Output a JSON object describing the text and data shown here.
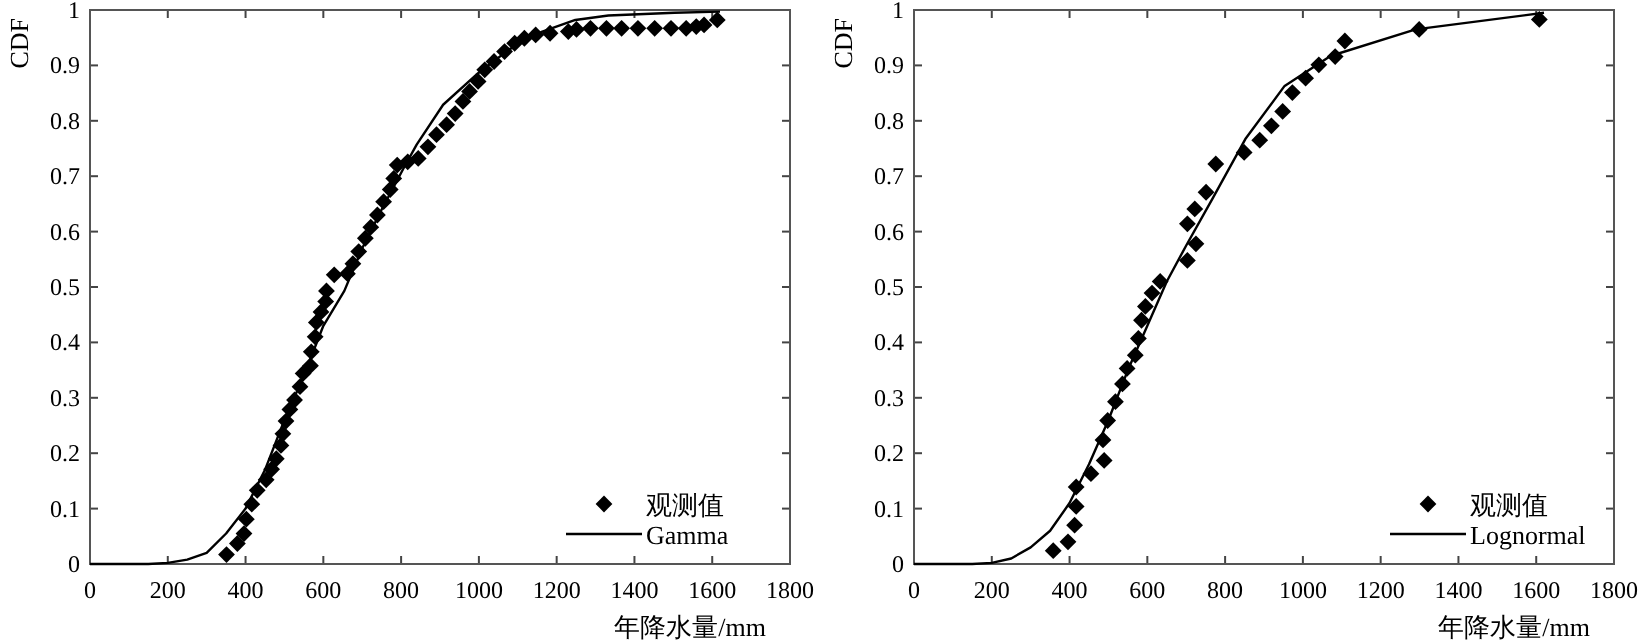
{
  "chart_data": [
    {
      "type": "scatter",
      "xlabel": "年降水量/mm",
      "ylabel": "CDF",
      "xlim": [
        0,
        1800
      ],
      "ylim": [
        0,
        1
      ],
      "xticks": [
        0,
        200,
        400,
        600,
        800,
        1000,
        1200,
        1400,
        1600,
        1800
      ],
      "yticks": [
        0,
        0.1,
        0.2,
        0.3,
        0.4,
        0.5,
        0.6,
        0.7,
        0.8,
        0.9,
        1
      ],
      "legend": "bottom right",
      "series": [
        {
          "name": "观测值",
          "marker": "diamond",
          "color": "#000000",
          "x": [
            351,
            379,
            396,
            402,
            416,
            430,
            453,
            467,
            479,
            491,
            496,
            504,
            514,
            526,
            540,
            548,
            567,
            569,
            579,
            582,
            594,
            606,
            608,
            628,
            662,
            676,
            691,
            708,
            722,
            739,
            755,
            772,
            781,
            790,
            817,
            844,
            869,
            891,
            917,
            939,
            959,
            976,
            998,
            1015,
            1039,
            1066,
            1092,
            1117,
            1146,
            1183,
            1230,
            1251,
            1287,
            1328,
            1367,
            1409,
            1452,
            1494,
            1533,
            1559,
            1579,
            1613
          ],
          "values": [
            0.017,
            0.037,
            0.055,
            0.081,
            0.108,
            0.133,
            0.152,
            0.171,
            0.19,
            0.214,
            0.235,
            0.258,
            0.279,
            0.296,
            0.32,
            0.344,
            0.358,
            0.383,
            0.41,
            0.436,
            0.455,
            0.474,
            0.493,
            0.522,
            0.524,
            0.542,
            0.564,
            0.588,
            0.608,
            0.63,
            0.654,
            0.676,
            0.696,
            0.72,
            0.726,
            0.732,
            0.753,
            0.775,
            0.793,
            0.813,
            0.835,
            0.853,
            0.871,
            0.892,
            0.907,
            0.925,
            0.94,
            0.949,
            0.955,
            0.958,
            0.961,
            0.965,
            0.967,
            0.967,
            0.967,
            0.967,
            0.967,
            0.967,
            0.967,
            0.97,
            0.973,
            0.982
          ]
        },
        {
          "name": "Gamma",
          "type": "line",
          "color": "#000000",
          "x": [
            0,
            150,
            200,
            250,
            300,
            350,
            400,
            450,
            500,
            550,
            600,
            654,
            700,
            750,
            806,
            840,
            908,
            993,
            1078,
            1163,
            1248,
            1333,
            1503,
            1620
          ],
          "values": [
            0,
            0,
            0.002,
            0.008,
            0.02,
            0.055,
            0.1,
            0.17,
            0.26,
            0.34,
            0.43,
            0.493,
            0.57,
            0.64,
            0.714,
            0.757,
            0.829,
            0.883,
            0.929,
            0.961,
            0.982,
            0.99,
            0.995,
            0.997
          ]
        }
      ]
    },
    {
      "type": "scatter",
      "xlabel": "年降水量/mm",
      "ylabel": "CDF",
      "xlim": [
        0,
        1800
      ],
      "ylim": [
        0,
        1
      ],
      "xticks": [
        0,
        200,
        400,
        600,
        800,
        1000,
        1200,
        1400,
        1600,
        1800
      ],
      "yticks": [
        0,
        0.1,
        0.2,
        0.3,
        0.4,
        0.5,
        0.6,
        0.7,
        0.8,
        0.9,
        1
      ],
      "legend": "bottom right",
      "series": [
        {
          "name": "观测值",
          "marker": "diamond",
          "color": "#000000",
          "x": [
            358,
            396,
            413,
            417,
            417,
            455,
            489,
            486,
            498,
            518,
            536,
            548,
            569,
            577,
            585,
            595,
            612,
            633,
            703,
            725,
            703,
            722,
            751,
            776,
            849,
            889,
            919,
            948,
            973,
            1007,
            1041,
            1083,
            1108,
            1299,
            1608
          ],
          "values": [
            0.024,
            0.04,
            0.07,
            0.104,
            0.139,
            0.163,
            0.187,
            0.224,
            0.259,
            0.293,
            0.325,
            0.353,
            0.377,
            0.407,
            0.44,
            0.465,
            0.489,
            0.51,
            0.548,
            0.578,
            0.614,
            0.641,
            0.671,
            0.722,
            0.743,
            0.765,
            0.791,
            0.817,
            0.851,
            0.877,
            0.901,
            0.916,
            0.944,
            0.965,
            0.983
          ]
        },
        {
          "name": "Lognormal",
          "type": "line",
          "color": "#000000",
          "x": [
            0,
            150,
            200,
            250,
            300,
            350,
            400,
            450,
            500,
            550,
            600,
            650,
            700,
            768,
            852,
            953,
            1071,
            1290,
            1620
          ],
          "values": [
            0,
            0,
            0.002,
            0.01,
            0.03,
            0.06,
            0.11,
            0.18,
            0.26,
            0.35,
            0.43,
            0.51,
            0.575,
            0.66,
            0.767,
            0.863,
            0.917,
            0.965,
            0.995
          ]
        }
      ]
    }
  ]
}
